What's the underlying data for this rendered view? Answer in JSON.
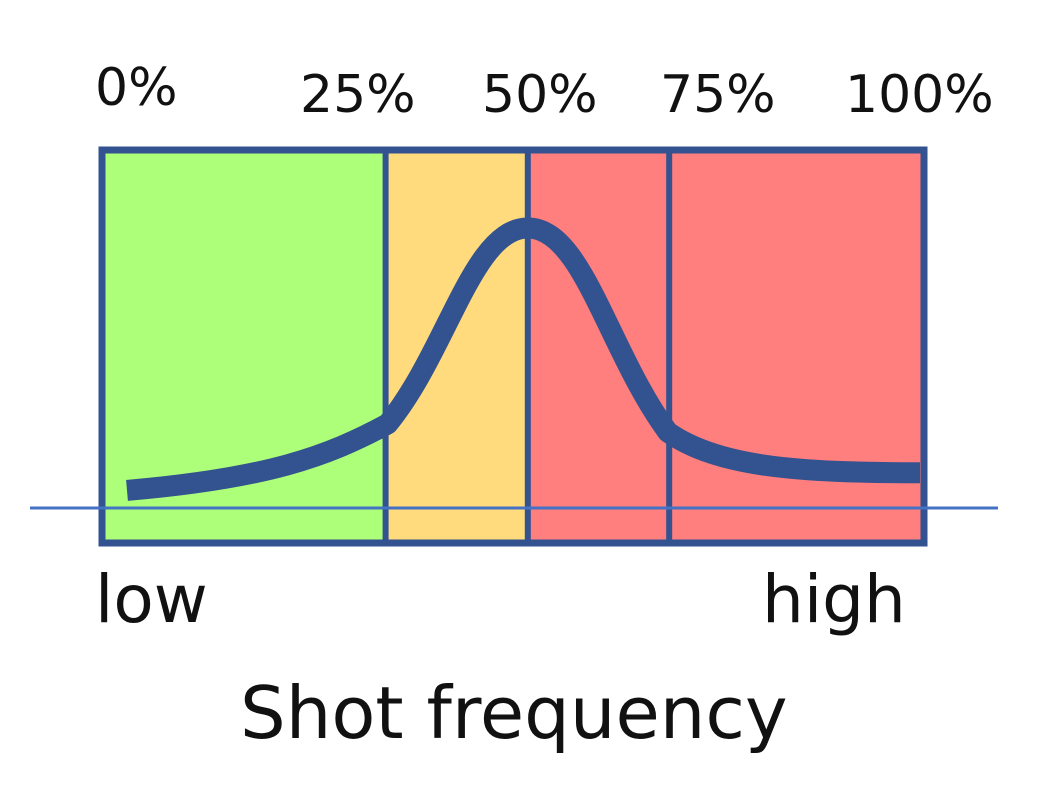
{
  "ticks": [
    "0%",
    "25%",
    "50%",
    "75%",
    "100%"
  ],
  "ends": {
    "low": "low",
    "high": "high"
  },
  "title": "Shot frequency",
  "zones": [
    {
      "from": 0,
      "to": 0.345,
      "color": "#adff7a"
    },
    {
      "from": 0.345,
      "to": 0.518,
      "color": "#ffdb7e"
    },
    {
      "from": 0.518,
      "to": 0.69,
      "color": "#ff7e7e"
    },
    {
      "from": 0.69,
      "to": 1,
      "color": "#ff7e7e"
    }
  ],
  "colors": {
    "border": "#335290",
    "curve": "#335290",
    "baseline": "#4472c4"
  },
  "curve": {
    "peak_position": 0.518,
    "peak_height": 1.0,
    "left_tail_height": 0.05,
    "right_tail_height": 0.1
  }
}
